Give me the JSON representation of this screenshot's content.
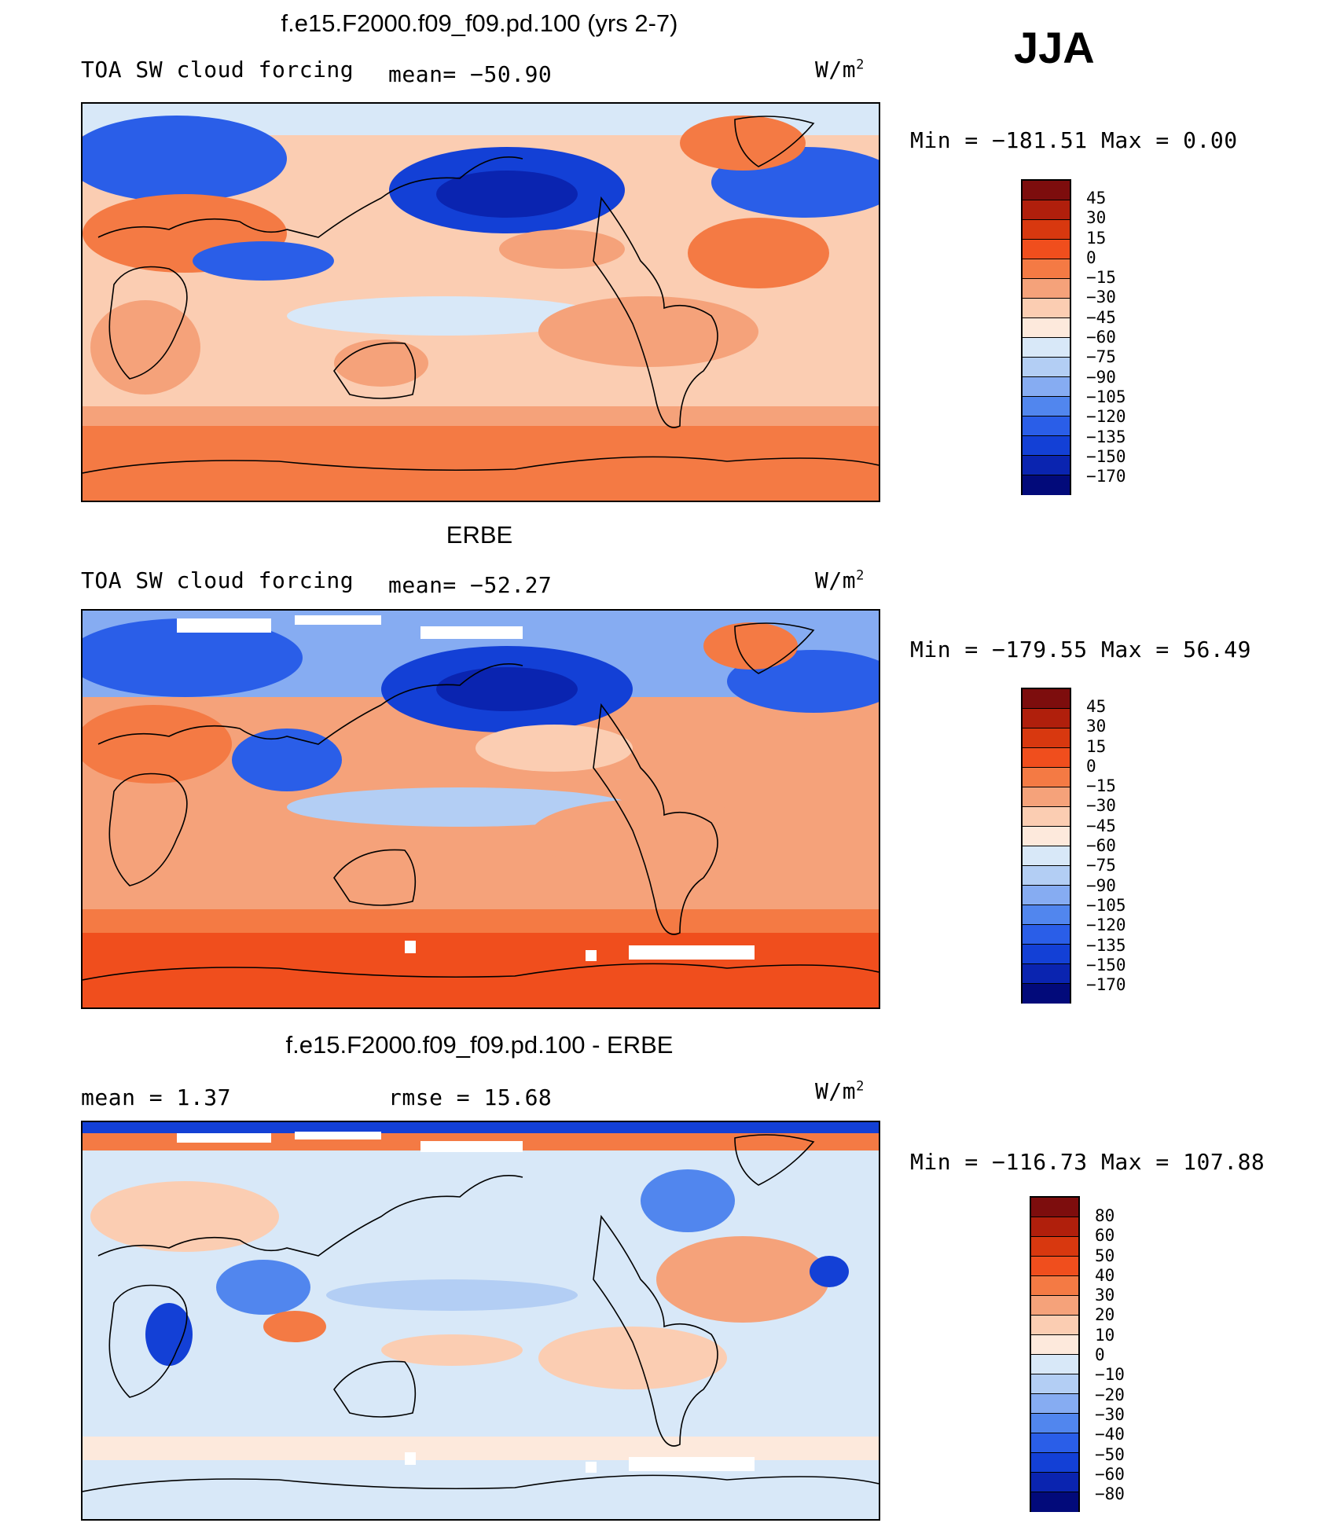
{
  "season": "JJA",
  "panels": [
    {
      "title": "f.e15.F2000.f09_f09.pd.100 (yrs 2-7)",
      "field": "TOA SW cloud forcing",
      "mean_label": "mean= −50.90",
      "unit": "W/m",
      "unit_exp": "2",
      "minmax": "Min = −181.51 Max =   0.00",
      "colorbar_labels": [
        "45",
        "30",
        "15",
        "0",
        "−15",
        "−30",
        "−45",
        "−60",
        "−75",
        "−90",
        "−105",
        "−120",
        "−135",
        "−150",
        "−170"
      ]
    },
    {
      "title": "ERBE",
      "field": "TOA SW cloud forcing",
      "mean_label": "mean= −52.27",
      "unit": "W/m",
      "unit_exp": "2",
      "minmax": "Min = −179.55 Max =  56.49",
      "colorbar_labels": [
        "45",
        "30",
        "15",
        "0",
        "−15",
        "−30",
        "−45",
        "−60",
        "−75",
        "−90",
        "−105",
        "−120",
        "−135",
        "−150",
        "−170"
      ]
    },
    {
      "title": "f.e15.F2000.f09_f09.pd.100 - ERBE",
      "field": "mean =    1.37",
      "mean_label": "rmse =   15.68",
      "unit": "W/m",
      "unit_exp": "2",
      "minmax": "Min = −116.73 Max = 107.88",
      "colorbar_labels": [
        "80",
        "60",
        "50",
        "40",
        "30",
        "20",
        "10",
        "0",
        "−10",
        "−20",
        "−30",
        "−40",
        "−50",
        "−60",
        "−80"
      ]
    }
  ],
  "colors": {
    "palette": [
      "#7d0d0d",
      "#b01f0c",
      "#d8380f",
      "#f04e1d",
      "#f47a44",
      "#f5a27a",
      "#fbcdb2",
      "#fde9dc",
      "#d8e8f8",
      "#b3cef4",
      "#86acf2",
      "#5186ee",
      "#2a5ee8",
      "#1340d6",
      "#0a24b0",
      "#020a7a"
    ],
    "coastline": "#000000",
    "missing": "#ffffff"
  }
}
